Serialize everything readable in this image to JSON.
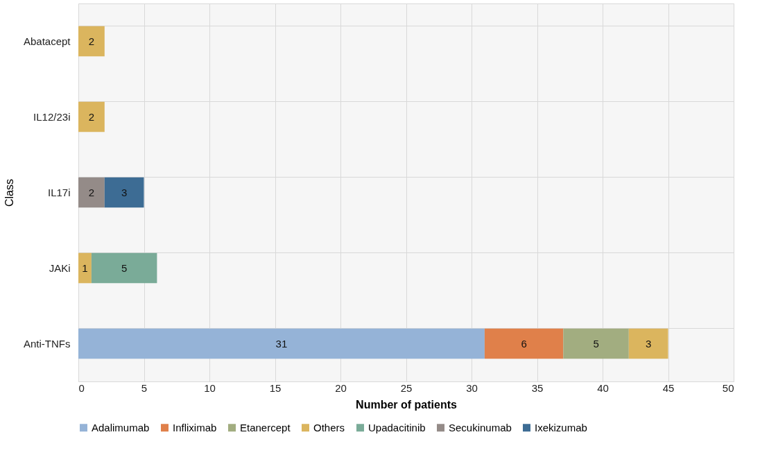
{
  "chart_data": {
    "type": "bar",
    "orientation": "horizontal",
    "stacked": true,
    "xlabel": "Number of patients",
    "ylabel": "Class",
    "categories": [
      "Abatacept",
      "IL12/23i",
      "IL17i",
      "JAKi",
      "Anti-TNFs"
    ],
    "series": [
      {
        "name": "Adalimumab",
        "color": "#95b3d7",
        "values": [
          null,
          null,
          null,
          null,
          31
        ]
      },
      {
        "name": "Infliximab",
        "color": "#e0804a",
        "values": [
          null,
          null,
          null,
          null,
          6
        ]
      },
      {
        "name": "Etanercept",
        "color": "#a2ad80",
        "values": [
          null,
          null,
          null,
          null,
          5
        ]
      },
      {
        "name": "Others",
        "color": "#dbb55e",
        "values": [
          2,
          2,
          null,
          1,
          3
        ]
      },
      {
        "name": "Upadacitinib",
        "color": "#7aab98",
        "values": [
          null,
          null,
          null,
          5,
          null
        ]
      },
      {
        "name": "Secukinumab",
        "color": "#948b88",
        "values": [
          null,
          null,
          2,
          null,
          null
        ]
      },
      {
        "name": "Ixekizumab",
        "color": "#3d6c94",
        "values": [
          null,
          null,
          3,
          null,
          null
        ]
      }
    ],
    "xlim": [
      0,
      50
    ],
    "xticks": [
      0,
      5,
      10,
      15,
      20,
      25,
      30,
      35,
      40,
      45,
      50
    ],
    "grid": true,
    "legend": "bottom",
    "data_labels": true
  }
}
